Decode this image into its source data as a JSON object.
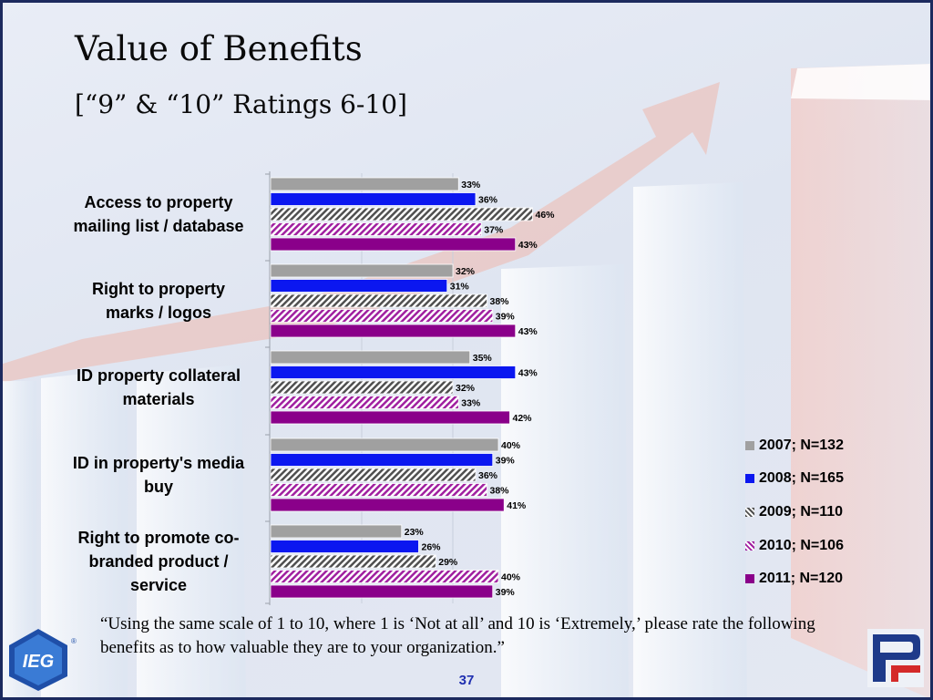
{
  "title": "Value of Benefits",
  "subtitle": "[“9” & “10” Ratings 6-10]",
  "footnote": "“Using the same scale of 1 to 10, where 1 is ‘Not at all’ and 10 is ‘Extremely,’ please rate the following benefits as to how valuable they are to your organization.”",
  "page_number": "37",
  "logo_text": "IEG",
  "colors": {
    "frame": "#1c2a5e",
    "page_number": "#1f2fb0"
  },
  "chart_data": {
    "type": "bar",
    "orientation": "horizontal",
    "categories": [
      "Access to property mailing list / database",
      "Right to property marks / logos",
      "ID property collateral materials",
      "ID in property's media buy",
      "Right to promote co-branded product / service"
    ],
    "category_lines": [
      [
        "Access to property",
        "mailing list / database"
      ],
      [
        "Right to property",
        "marks / logos"
      ],
      [
        "ID property collateral",
        "materials"
      ],
      [
        "ID in property's media",
        "buy"
      ],
      [
        "Right to promote co-",
        "branded product /",
        "service"
      ]
    ],
    "series": [
      {
        "name": "2007; N=132",
        "color": "#a0a0a0",
        "pattern": "solid",
        "values": [
          33,
          32,
          35,
          40,
          23
        ]
      },
      {
        "name": "2008; N=165",
        "color": "#0b17f0",
        "pattern": "solid",
        "values": [
          36,
          31,
          43,
          39,
          26
        ]
      },
      {
        "name": "2009; N=110",
        "color": "#505050",
        "pattern": "hatch",
        "values": [
          46,
          38,
          32,
          36,
          29
        ]
      },
      {
        "name": "2010; N=106",
        "color": "#a020a0",
        "pattern": "hatch",
        "values": [
          37,
          39,
          33,
          38,
          40
        ]
      },
      {
        "name": "2011; N=120",
        "color": "#8a008a",
        "pattern": "solid",
        "values": [
          43,
          43,
          42,
          41,
          39
        ]
      }
    ],
    "value_suffix": "%",
    "legend_position": "right",
    "xlim": [
      0,
      60
    ],
    "gridlines": true
  }
}
